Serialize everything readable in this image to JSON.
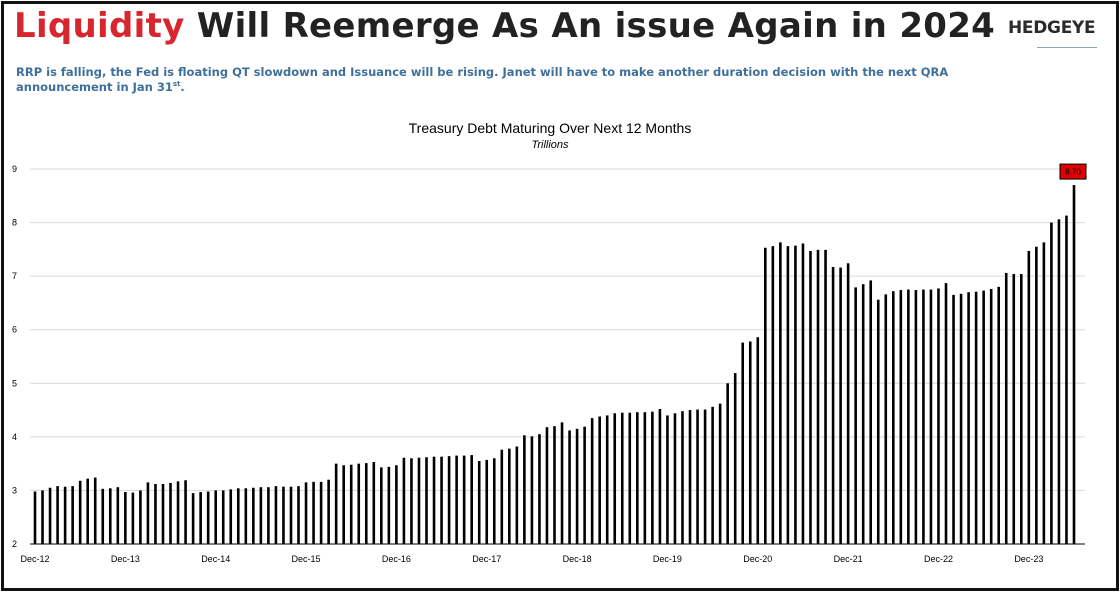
{
  "header": {
    "headline_accent": "Liquidity",
    "headline_rest": " Will Reemerge As An issue Again in 2024",
    "brand": "HEDGEYE",
    "subtitle_main": "RRP is falling, the Fed is floating QT slowdown and Issuance will be rising.  Janet will have to make another duration decision with the next QRA announcement in Jan 31",
    "subtitle_sup": "st",
    "subtitle_end": "."
  },
  "colors": {
    "accent": "#d7262e",
    "subtitle": "#3f6f9b",
    "bars": "#000000",
    "callout": "#e00000"
  },
  "chart_data": {
    "type": "bar",
    "title": "Treasury Debt Maturing Over Next 12 Months",
    "subtitle": "Trillions",
    "ylim": [
      2,
      9
    ],
    "yticks": [
      2,
      3,
      4,
      5,
      6,
      7,
      8,
      9
    ],
    "grid": true,
    "x_tick_labels": [
      "Dec-12",
      "Dec-13",
      "Dec-14",
      "Dec-15",
      "Dec-16",
      "Dec-17",
      "Dec-18",
      "Dec-19",
      "Dec-20",
      "Dec-21",
      "Dec-22",
      "Dec-23"
    ],
    "frequency": "monthly",
    "start": "Dec-12",
    "end": "Dec-23",
    "values": [
      2.98,
      3.0,
      3.05,
      3.08,
      3.07,
      3.08,
      3.18,
      3.22,
      3.24,
      3.03,
      3.04,
      3.06,
      2.97,
      2.96,
      3.0,
      3.15,
      3.12,
      3.12,
      3.14,
      3.17,
      3.19,
      2.95,
      2.97,
      2.98,
      3.0,
      3.0,
      3.02,
      3.04,
      3.04,
      3.05,
      3.06,
      3.06,
      3.08,
      3.07,
      3.07,
      3.08,
      3.15,
      3.16,
      3.16,
      3.2,
      3.5,
      3.47,
      3.48,
      3.5,
      3.51,
      3.53,
      3.43,
      3.44,
      3.47,
      3.61,
      3.6,
      3.61,
      3.62,
      3.63,
      3.63,
      3.64,
      3.65,
      3.65,
      3.66,
      3.55,
      3.57,
      3.6,
      3.76,
      3.78,
      3.82,
      4.03,
      4.01,
      4.05,
      4.18,
      4.2,
      4.27,
      4.12,
      4.15,
      4.19,
      4.35,
      4.38,
      4.4,
      4.44,
      4.45,
      4.45,
      4.46,
      4.46,
      4.47,
      4.52,
      4.4,
      4.44,
      4.48,
      4.5,
      4.51,
      4.51,
      4.56,
      4.62,
      5.0,
      5.19,
      5.76,
      5.78,
      5.86,
      7.53,
      7.56,
      7.63,
      7.56,
      7.57,
      7.61,
      7.47,
      7.49,
      7.49,
      7.17,
      7.16,
      7.24,
      6.79,
      6.85,
      6.92,
      6.56,
      6.66,
      6.72,
      6.74,
      6.75,
      6.74,
      6.75,
      6.75,
      6.77,
      6.87,
      6.65,
      6.67,
      6.7,
      6.71,
      6.73,
      6.76,
      6.8,
      7.06,
      7.04,
      7.04,
      7.47,
      7.55,
      7.63,
      8.0,
      8.06,
      8.13,
      8.7
    ],
    "annotation": {
      "label": "8.70",
      "value": 8.7
    }
  }
}
